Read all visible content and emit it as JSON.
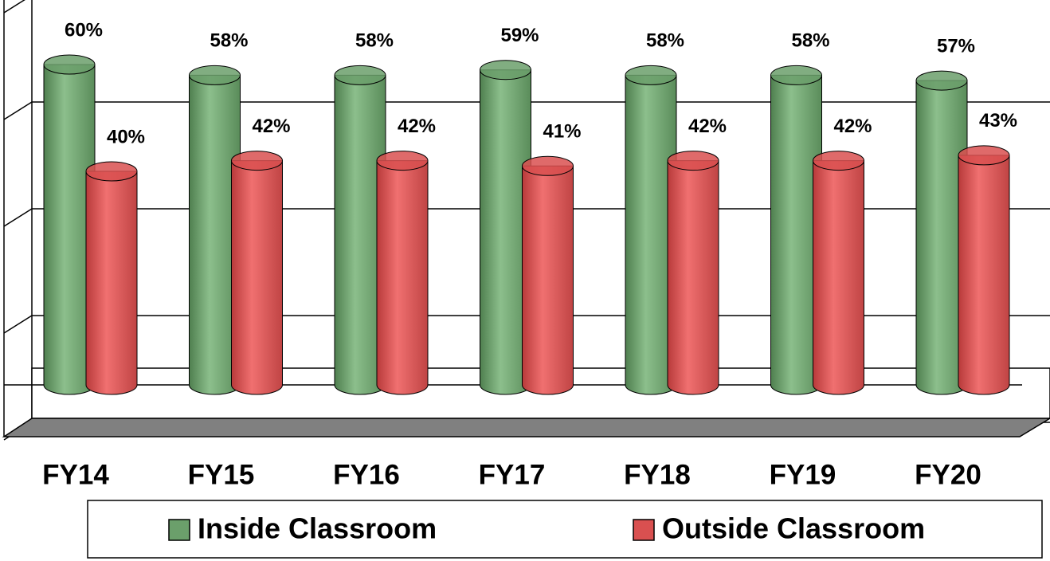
{
  "chart_data": {
    "type": "bar",
    "categories": [
      "FY14",
      "FY15",
      "FY16",
      "FY17",
      "FY18",
      "FY19",
      "FY20"
    ],
    "series": [
      {
        "name": "Inside Classroom",
        "color": "#6b9f6b",
        "values": [
          60,
          58,
          58,
          59,
          58,
          58,
          57
        ],
        "value_labels": [
          "60%",
          "58%",
          "58%",
          "59%",
          "58%",
          "58%",
          "57%"
        ]
      },
      {
        "name": "Outside Classroom",
        "color": "#d95050",
        "values": [
          40,
          42,
          42,
          41,
          42,
          42,
          43
        ],
        "value_labels": [
          "40%",
          "42%",
          "42%",
          "41%",
          "42%",
          "42%",
          "43%"
        ]
      }
    ],
    "ylim": [
      0,
      80
    ],
    "yticks": [
      0,
      20,
      40,
      60,
      80
    ],
    "grid": true
  }
}
